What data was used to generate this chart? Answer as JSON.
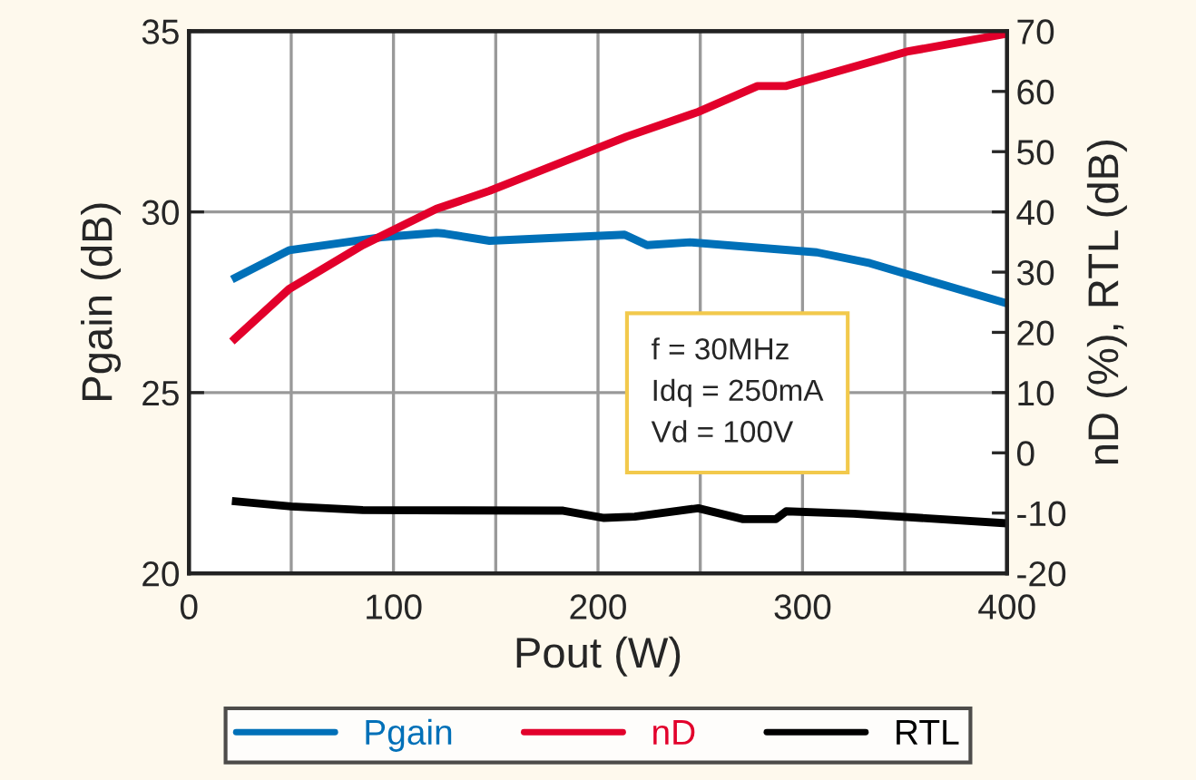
{
  "chart_data": {
    "type": "line",
    "xlabel": "Pout (W)",
    "ylabel": "Pgain (dB)",
    "y2label": "nD (%), RTL (dB)",
    "xlim": [
      0,
      400
    ],
    "xticks": [
      0,
      {
        "value": 50,
        "label": null
      },
      100,
      {
        "value": 150,
        "label": null
      },
      200,
      {
        "value": 250,
        "label": null
      },
      300,
      {
        "value": 350,
        "label": null
      },
      400
    ],
    "ylim": [
      20,
      35
    ],
    "yticks": [
      20,
      25,
      30,
      35
    ],
    "y2lim": [
      -20,
      70
    ],
    "y2ticks": [
      -20,
      -10,
      0,
      10,
      20,
      30,
      40,
      50,
      60,
      70
    ],
    "grid": true,
    "legend": "bottom",
    "line_style": "solid",
    "annotations": [
      "f = 30MHz\nIdq = 250mA\nVd = 100V"
    ],
    "series": [
      {
        "name": "Pgain",
        "color": "#0070b8",
        "x": [
          21,
          49,
          94,
          121,
          125,
          147,
          213,
          224,
          245,
          307,
          333,
          351,
          400
        ],
        "values": [
          28.13,
          28.94,
          29.3,
          29.42,
          29.4,
          29.2,
          29.37,
          29.08,
          29.16,
          28.88,
          28.58,
          28.28,
          27.47
        ]
      },
      {
        "name": "nD",
        "color": "#e2002b",
        "axis": "y2",
        "x": [
          21,
          49,
          85,
          121,
          147,
          214,
          249,
          278,
          292,
          351,
          400
        ],
        "values": [
          18.5,
          27.2,
          34.5,
          40.5,
          43.5,
          52.5,
          56.6,
          60.9,
          60.9,
          66.6,
          69.6
        ]
      },
      {
        "name": "RTL",
        "color": "#000000",
        "axis": "y2",
        "x": [
          21,
          50,
          85,
          183,
          203,
          218,
          249,
          271,
          287,
          292,
          325,
          400
        ],
        "values": [
          -8.0,
          -8.9,
          -9.5,
          -9.6,
          -10.8,
          -10.6,
          -9.2,
          -11.0,
          -11.0,
          -9.7,
          -10.1,
          -11.7
        ]
      }
    ]
  }
}
